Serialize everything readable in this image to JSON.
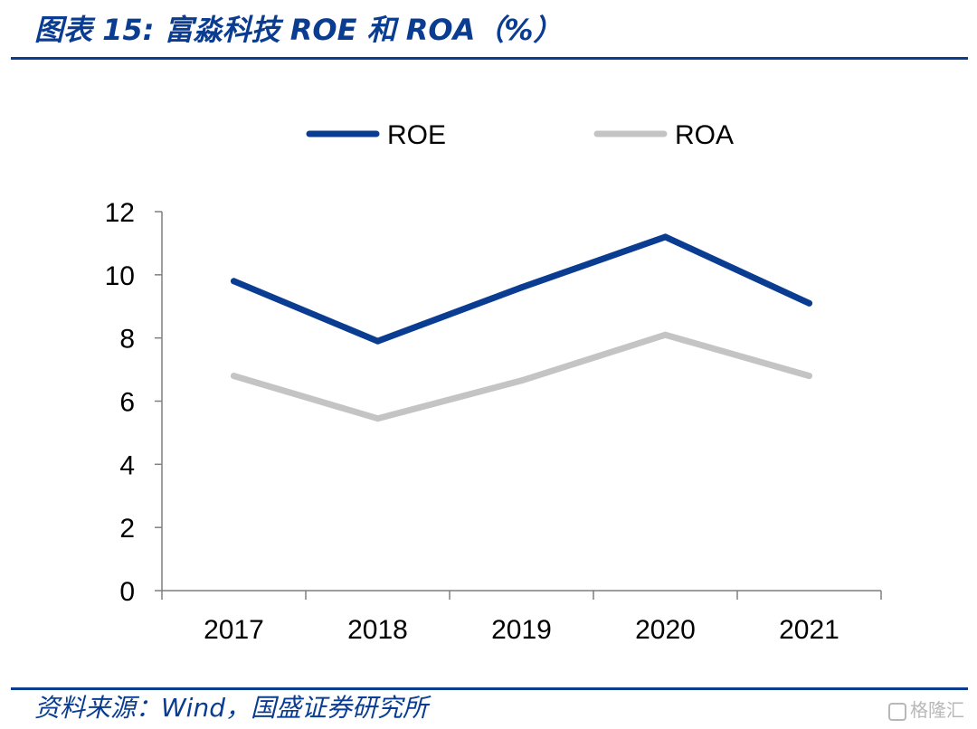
{
  "header": {
    "title": "图表 15:  富淼科技 ROE 和 ROA（%）"
  },
  "footer": {
    "source": "资料来源：Wind，国盛证券研究所",
    "watermark": "格隆汇"
  },
  "chart_data": {
    "type": "line",
    "title": "",
    "xlabel": "",
    "ylabel": "",
    "x": [
      "2017",
      "2018",
      "2019",
      "2020",
      "2021"
    ],
    "ylim": [
      0,
      12
    ],
    "yticks": [
      0,
      2,
      4,
      6,
      8,
      10,
      12
    ],
    "grid": false,
    "legend_position": "top-center",
    "series": [
      {
        "name": "ROE",
        "values": [
          9.8,
          7.9,
          9.6,
          11.2,
          9.1
        ],
        "color": "#0a3d91"
      },
      {
        "name": "ROA",
        "values": [
          6.8,
          5.45,
          6.65,
          8.1,
          6.8
        ],
        "color": "#c4c4c4"
      }
    ]
  }
}
